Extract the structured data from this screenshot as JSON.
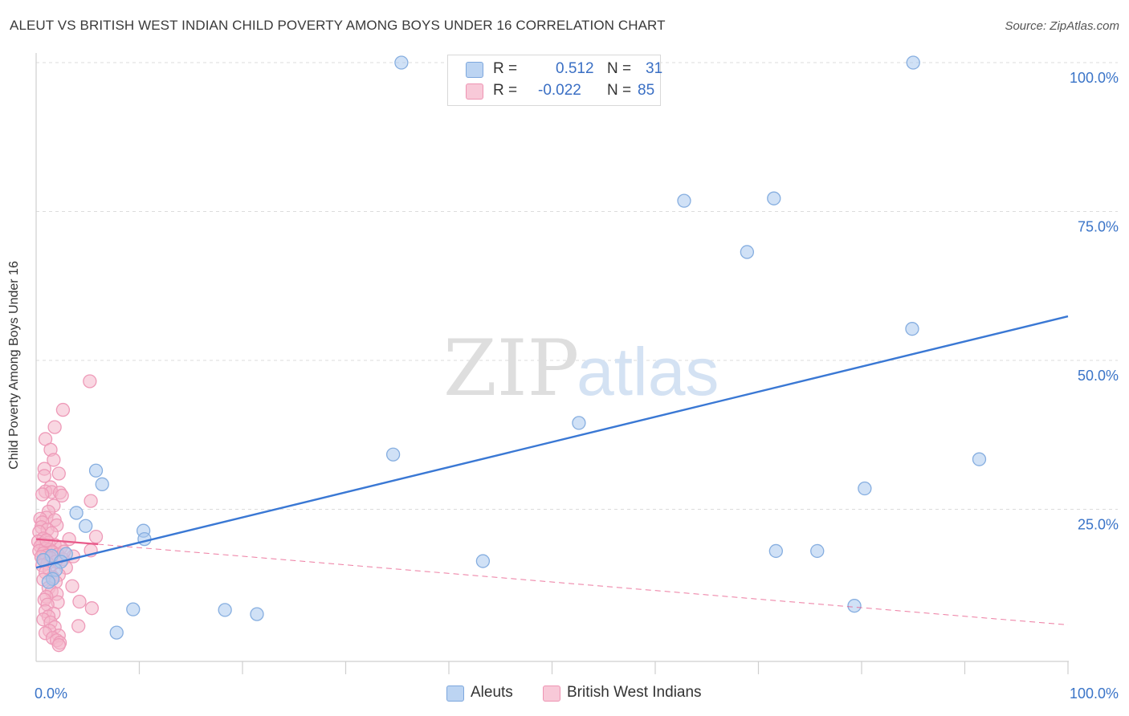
{
  "header": {
    "title": "ALEUT VS BRITISH WEST INDIAN CHILD POVERTY AMONG BOYS UNDER 16 CORRELATION CHART",
    "source": "Source: ZipAtlas.com"
  },
  "watermark": {
    "zip": "ZIP",
    "atlas": "atlas"
  },
  "legend": {
    "rows": [
      {
        "r_label": "R =",
        "r_value": "0.512",
        "n_label": "N =",
        "n_value": "31",
        "color": "#a9c8ef"
      },
      {
        "r_label": "R =",
        "r_value": "-0.022",
        "n_label": "N =",
        "n_value": "85",
        "color": "#f4b7cb"
      }
    ]
  },
  "bottom_legend": [
    {
      "label": "Aleuts",
      "color": "#a9c8ef"
    },
    {
      "label": "British West Indians",
      "color": "#f4b7cb"
    }
  ],
  "chart_data": {
    "type": "scatter",
    "title": "ALEUT VS BRITISH WEST INDIAN CHILD POVERTY AMONG BOYS UNDER 16 CORRELATION CHART",
    "xlabel": "",
    "ylabel": "Child Poverty Among Boys Under 16",
    "xlim": [
      0,
      100
    ],
    "ylim": [
      0,
      100
    ],
    "x_tick_labels": [
      "0.0%",
      "100.0%"
    ],
    "y_tick_labels": [
      "100.0%",
      "75.0%",
      "50.0%",
      "25.0%"
    ],
    "y_ticks": [
      100,
      75,
      50,
      25
    ],
    "grid": true,
    "legend_position": "top-center",
    "series": [
      {
        "name": "Aleuts",
        "color": "#3a78d4",
        "fill": "#a9c8ef",
        "r": 0.512,
        "n": 31,
        "trend": {
          "x": [
            0,
            100
          ],
          "y": [
            15.2,
            57.4
          ],
          "style": "solid"
        },
        "points": [
          [
            35.4,
            100
          ],
          [
            85.0,
            100
          ],
          [
            62.8,
            76.8
          ],
          [
            71.5,
            77.2
          ],
          [
            68.9,
            68.2
          ],
          [
            84.9,
            55.3
          ],
          [
            52.6,
            39.5
          ],
          [
            34.6,
            34.2
          ],
          [
            91.4,
            33.4
          ],
          [
            80.3,
            28.5
          ],
          [
            5.8,
            31.5
          ],
          [
            6.4,
            29.2
          ],
          [
            3.9,
            24.4
          ],
          [
            4.8,
            22.2
          ],
          [
            10.4,
            21.4
          ],
          [
            10.5,
            20.0
          ],
          [
            1.5,
            17.2
          ],
          [
            2.9,
            17.5
          ],
          [
            0.7,
            16.5
          ],
          [
            2.4,
            16.2
          ],
          [
            1.9,
            14.8
          ],
          [
            1.6,
            13.3
          ],
          [
            1.2,
            12.8
          ],
          [
            43.3,
            16.3
          ],
          [
            71.7,
            18.0
          ],
          [
            75.7,
            18.0
          ],
          [
            9.4,
            8.2
          ],
          [
            18.3,
            8.1
          ],
          [
            21.4,
            7.4
          ],
          [
            7.8,
            4.3
          ],
          [
            79.3,
            8.8
          ]
        ]
      },
      {
        "name": "British West Indians",
        "color": "#e85a8a",
        "fill": "#f4b7cb",
        "r": -0.022,
        "n": 85,
        "trend": {
          "x": [
            0,
            100
          ],
          "y": [
            20.0,
            5.6
          ],
          "style": "dashed",
          "solid_until_x": 6
        },
        "points": [
          [
            5.2,
            46.5
          ],
          [
            2.6,
            41.7
          ],
          [
            1.8,
            38.8
          ],
          [
            0.9,
            36.8
          ],
          [
            1.4,
            35.0
          ],
          [
            1.7,
            33.3
          ],
          [
            0.8,
            31.8
          ],
          [
            2.2,
            31.0
          ],
          [
            0.8,
            30.6
          ],
          [
            1.4,
            28.7
          ],
          [
            0.9,
            28.0
          ],
          [
            1.5,
            27.9
          ],
          [
            2.3,
            27.8
          ],
          [
            2.5,
            27.3
          ],
          [
            0.6,
            27.5
          ],
          [
            5.3,
            26.4
          ],
          [
            1.7,
            25.6
          ],
          [
            1.2,
            24.6
          ],
          [
            1.0,
            23.6
          ],
          [
            0.4,
            23.4
          ],
          [
            1.8,
            23.2
          ],
          [
            0.6,
            22.8
          ],
          [
            2.0,
            22.3
          ],
          [
            0.5,
            22.0
          ],
          [
            1.1,
            21.6
          ],
          [
            0.3,
            21.2
          ],
          [
            1.5,
            21.0
          ],
          [
            5.8,
            20.4
          ],
          [
            0.7,
            20.1
          ],
          [
            3.2,
            20.0
          ],
          [
            0.2,
            19.6
          ],
          [
            1.2,
            19.4
          ],
          [
            0.6,
            19.2
          ],
          [
            1.8,
            19.0
          ],
          [
            0.4,
            18.8
          ],
          [
            2.4,
            18.6
          ],
          [
            0.9,
            18.4
          ],
          [
            1.3,
            18.2
          ],
          [
            5.3,
            18.1
          ],
          [
            0.3,
            18.0
          ],
          [
            1.6,
            17.8
          ],
          [
            0.7,
            17.6
          ],
          [
            2.1,
            17.4
          ],
          [
            1.0,
            17.2
          ],
          [
            3.6,
            17.1
          ],
          [
            0.5,
            17.0
          ],
          [
            1.4,
            16.8
          ],
          [
            2.6,
            16.6
          ],
          [
            0.8,
            16.4
          ],
          [
            1.9,
            16.2
          ],
          [
            1.1,
            15.9
          ],
          [
            0.6,
            15.6
          ],
          [
            2.9,
            15.2
          ],
          [
            1.3,
            14.8
          ],
          [
            0.9,
            14.4
          ],
          [
            2.2,
            14.0
          ],
          [
            1.6,
            13.6
          ],
          [
            0.7,
            13.2
          ],
          [
            1.9,
            12.8
          ],
          [
            3.5,
            12.1
          ],
          [
            1.2,
            11.8
          ],
          [
            1.5,
            11.2
          ],
          [
            2.0,
            10.8
          ],
          [
            1.0,
            10.3
          ],
          [
            0.8,
            9.8
          ],
          [
            4.2,
            9.5
          ],
          [
            2.1,
            9.4
          ],
          [
            1.1,
            9.0
          ],
          [
            5.4,
            8.4
          ],
          [
            0.9,
            7.9
          ],
          [
            1.7,
            7.5
          ],
          [
            1.2,
            7.0
          ],
          [
            0.7,
            6.5
          ],
          [
            1.4,
            6.0
          ],
          [
            4.1,
            5.4
          ],
          [
            1.8,
            5.2
          ],
          [
            1.3,
            4.6
          ],
          [
            0.9,
            4.2
          ],
          [
            2.2,
            3.8
          ],
          [
            1.6,
            3.4
          ],
          [
            2.0,
            3.0
          ],
          [
            2.3,
            2.6
          ],
          [
            2.2,
            2.2
          ],
          [
            1.0,
            19.8
          ],
          [
            2.7,
            17.9
          ]
        ]
      }
    ]
  }
}
